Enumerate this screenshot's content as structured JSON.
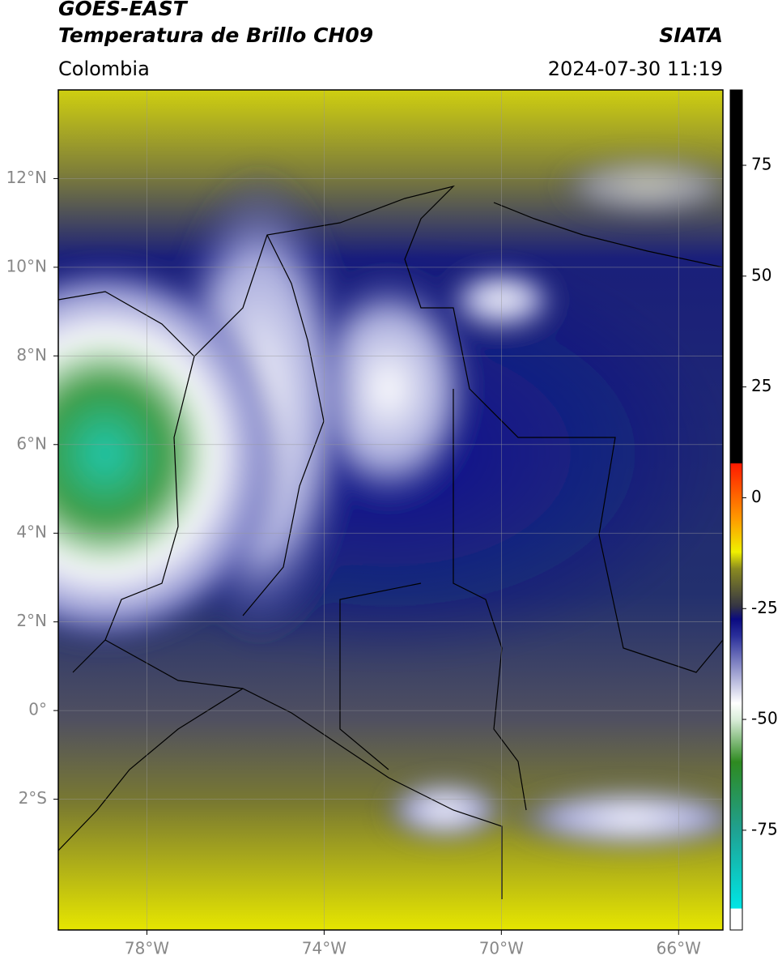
{
  "header": {
    "title": "GOES-EAST",
    "subtitle": "Temperatura de Brillo CH09",
    "source": "SIATA",
    "region": "Colombia",
    "datetime": "2024-07-30 11:19"
  },
  "map": {
    "xlim": [
      -80,
      -65
    ],
    "ylim": [
      -4.95,
      14
    ],
    "xticks": [
      {
        "value": -78,
        "label": "78°W"
      },
      {
        "value": -74,
        "label": "74°W"
      },
      {
        "value": -70,
        "label": "70°W"
      },
      {
        "value": -66,
        "label": "66°W"
      }
    ],
    "yticks": [
      {
        "value": 12,
        "label": "12°N"
      },
      {
        "value": 10,
        "label": "10°N"
      },
      {
        "value": 8,
        "label": "8°N"
      },
      {
        "value": 6,
        "label": "6°N"
      },
      {
        "value": 4,
        "label": "4°N"
      },
      {
        "value": 2,
        "label": "2°N"
      },
      {
        "value": 0,
        "label": "0°"
      },
      {
        "value": -2,
        "label": "2°S"
      }
    ],
    "grid": true
  },
  "colorbar": {
    "lim": [
      -97.5,
      92
    ],
    "ticks": [
      75,
      50,
      25,
      0,
      -25,
      -50,
      -75
    ]
  }
}
